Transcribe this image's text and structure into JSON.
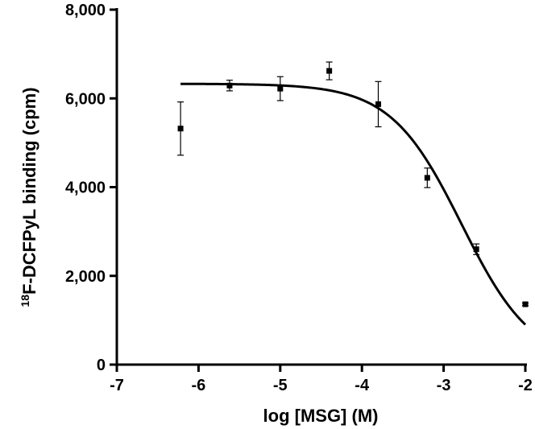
{
  "chart_data": {
    "type": "scatter",
    "xlabel": "log [MSG] (M)",
    "ylabel_superscript": "18",
    "ylabel_main": "F-DCFPyL binding (cpm)",
    "xlim": [
      -7,
      -2
    ],
    "ylim": [
      0,
      8000
    ],
    "x_ticks": [
      -7,
      -6,
      -5,
      -4,
      -3,
      -2
    ],
    "x_tick_labels": [
      "-7",
      "-6",
      "-5",
      "-4",
      "-3",
      "-2"
    ],
    "y_ticks": [
      0,
      2000,
      4000,
      6000,
      8000
    ],
    "y_tick_labels": [
      "0",
      "2,000",
      "4,000",
      "6,000",
      "8,000"
    ],
    "grid": false,
    "points": [
      {
        "x": -6.22,
        "y": 5320,
        "err": 600
      },
      {
        "x": -5.62,
        "y": 6290,
        "err": 120
      },
      {
        "x": -5.0,
        "y": 6220,
        "err": 270
      },
      {
        "x": -4.4,
        "y": 6620,
        "err": 200
      },
      {
        "x": -3.8,
        "y": 5870,
        "err": 510
      },
      {
        "x": -3.2,
        "y": 4210,
        "err": 220
      },
      {
        "x": -2.6,
        "y": 2600,
        "err": 120
      },
      {
        "x": -2.0,
        "y": 1360,
        "err": 30
      }
    ],
    "fit_curve": {
      "model": "one-site competition",
      "top": 6330,
      "bottom": 0,
      "log_ic50": -2.78,
      "hill": 1.0,
      "x_range": [
        -6.22,
        -2.0
      ]
    },
    "colors": {
      "marker": "#000000",
      "curve": "#000000",
      "axis": "#000000"
    }
  }
}
